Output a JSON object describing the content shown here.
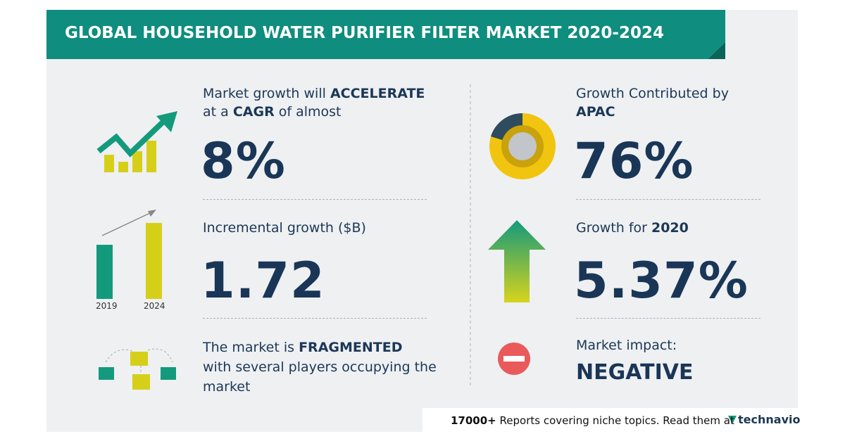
{
  "header": {
    "title": "GLOBAL HOUSEHOLD WATER PURIFIER FILTER MARKET 2020-2024"
  },
  "left": {
    "growth": {
      "lead": "Market growth will",
      "emphasis": "ACCELERATE",
      "lead_2": "at a",
      "emphasis_2": "CAGR",
      "tail": "of almost",
      "value": "8%"
    },
    "incremental": {
      "label": "Incremental growth ($B)",
      "value": "1.72",
      "years": [
        "2019",
        "2024"
      ]
    },
    "structure": {
      "lead": "The market is",
      "emphasis": "FRAGMENTED",
      "tail": "with several players occupying the",
      "tail_2": "market"
    }
  },
  "right": {
    "region": {
      "lead": "Growth Contributed by",
      "emphasis": "APAC",
      "value": "76%"
    },
    "yearly": {
      "lead": "Growth for",
      "emphasis": "2020",
      "value": "5.37%"
    },
    "impact": {
      "lead": "Market impact:",
      "emphasis": "NEGATIVE"
    }
  },
  "footer": {
    "count": "17000+",
    "text": "Reports covering niche topics. Read them at",
    "brand": "technavio"
  }
}
